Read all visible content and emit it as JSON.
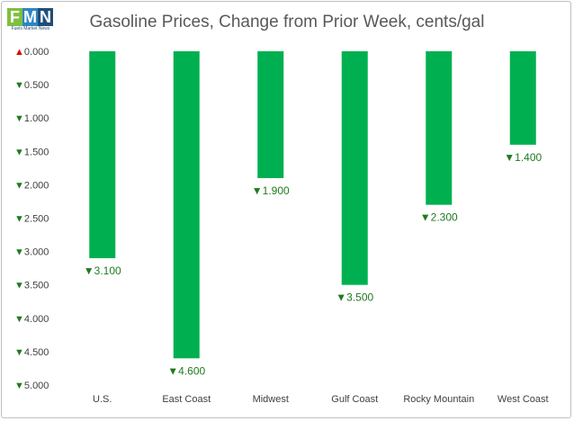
{
  "logo": {
    "letters": [
      "F",
      "M",
      "N"
    ],
    "subtitle": "Fuels Market News"
  },
  "colors": {
    "bar": "#00b050",
    "up": "#e00000",
    "down": "#1f7a1f",
    "axis_text": "#404040"
  },
  "chart_data": {
    "type": "bar",
    "title": "Gasoline Prices, Change from Prior Week, cents/gal",
    "xlabel": "",
    "ylabel": "",
    "categories": [
      "U.S.",
      "East Coast",
      "Midwest",
      "Gulf Coast",
      "Rocky Mountain",
      "West Coast"
    ],
    "values": [
      -3.1,
      -4.6,
      -1.9,
      -3.5,
      -2.3,
      -1.4
    ],
    "data_labels": [
      "▼3.100",
      "▼4.600",
      "▼1.900",
      "▼3.500",
      "▼2.300",
      "▼1.400"
    ],
    "ylim": [
      -5.0,
      0.0
    ],
    "y_ticks": [
      0.0,
      -0.5,
      -1.0,
      -1.5,
      -2.0,
      -2.5,
      -3.0,
      -3.5,
      -4.0,
      -4.5,
      -5.0
    ],
    "y_tick_labels": [
      "▲0.000",
      "▼0.500",
      "▼1.000",
      "▼1.500",
      "▼2.000",
      "▼2.500",
      "▼3.000",
      "▼3.500",
      "▼4.000",
      "▼4.500",
      "▼5.000"
    ],
    "grid": false,
    "legend": "none"
  }
}
